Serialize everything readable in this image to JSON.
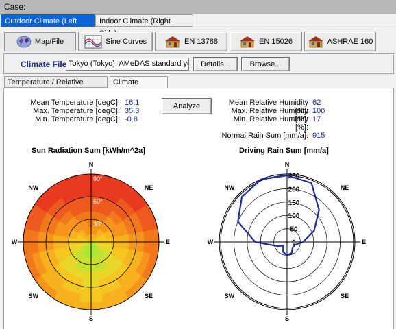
{
  "case": {
    "label": "Case:"
  },
  "top_tabs": [
    {
      "label": "Outdoor Climate (Left Side)",
      "active": true
    },
    {
      "label": "Indoor Climate (Right Side)",
      "active": false
    }
  ],
  "toolbar": {
    "map_file": "Map/File",
    "sine_curves": "Sine Curves",
    "en13788": "EN 13788",
    "en15026": "EN 15026",
    "ashrae160": "ASHRAE 160"
  },
  "climate_file": {
    "label": "Climate File",
    "value": "Tokyo (Tokyo); AMeDAS standard year",
    "details": "Details...",
    "browse": "Browse..."
  },
  "sub_tabs": [
    {
      "label": "Temperature / Relative Humidity",
      "active": false
    },
    {
      "label": "Climate Analysis",
      "active": true
    }
  ],
  "analysis": {
    "analyze_button": "Analyze",
    "mean_temp_label": "Mean Temperature [degC]:",
    "mean_temp": "16.1",
    "max_temp_label": "Max. Temperature [degC]:",
    "max_temp": "35.3",
    "min_temp_label": "Min. Temperature [degC]:",
    "min_temp": "-0.8",
    "mean_rh_label": "Mean Relative Humidity [%]:",
    "mean_rh": "62",
    "max_rh_label": "Max. Relative Humidity [%]:",
    "max_rh": "100",
    "min_rh_label": "Min. Relative Humidity [%]:",
    "min_rh": "17",
    "rain_label": "Normal Rain Sum [mm/a]:",
    "rain": "915"
  },
  "chart_data": [
    {
      "type": "polar-heatmap",
      "title": "Sun Radiation Sum [kWh/m^2a]",
      "direction_labels": [
        "N",
        "NE",
        "E",
        "SE",
        "S",
        "SW",
        "W",
        "NW"
      ],
      "ring_labels": [
        "90°",
        "60°",
        "30°"
      ],
      "scale": "red (low) to yellow-green (high)",
      "grid": true
    },
    {
      "type": "polar-line",
      "title": "Driving Rain Sum [mm/a]",
      "direction_labels": [
        "N",
        "NE",
        "E",
        "SE",
        "S",
        "SW",
        "W",
        "NW"
      ],
      "radial_ticks": [
        0,
        50,
        100,
        150,
        200,
        250
      ],
      "rmax": 250,
      "series_color": "#1c2da0",
      "series": [
        {
          "angles_deg": [
            0,
            22.5,
            45,
            67.5,
            90,
            112.5,
            135,
            157.5,
            180,
            202.5,
            225,
            247.5,
            270,
            292.5,
            315,
            337.5
          ],
          "values": [
            250,
            240,
            170,
            110,
            60,
            30,
            30,
            45,
            50,
            40,
            20,
            40,
            120,
            200,
            240,
            255
          ]
        }
      ]
    }
  ],
  "colors": {
    "accent": "#0a64d8",
    "value_text": "#1a2bb0",
    "label_blue": "#1c2a8c"
  }
}
